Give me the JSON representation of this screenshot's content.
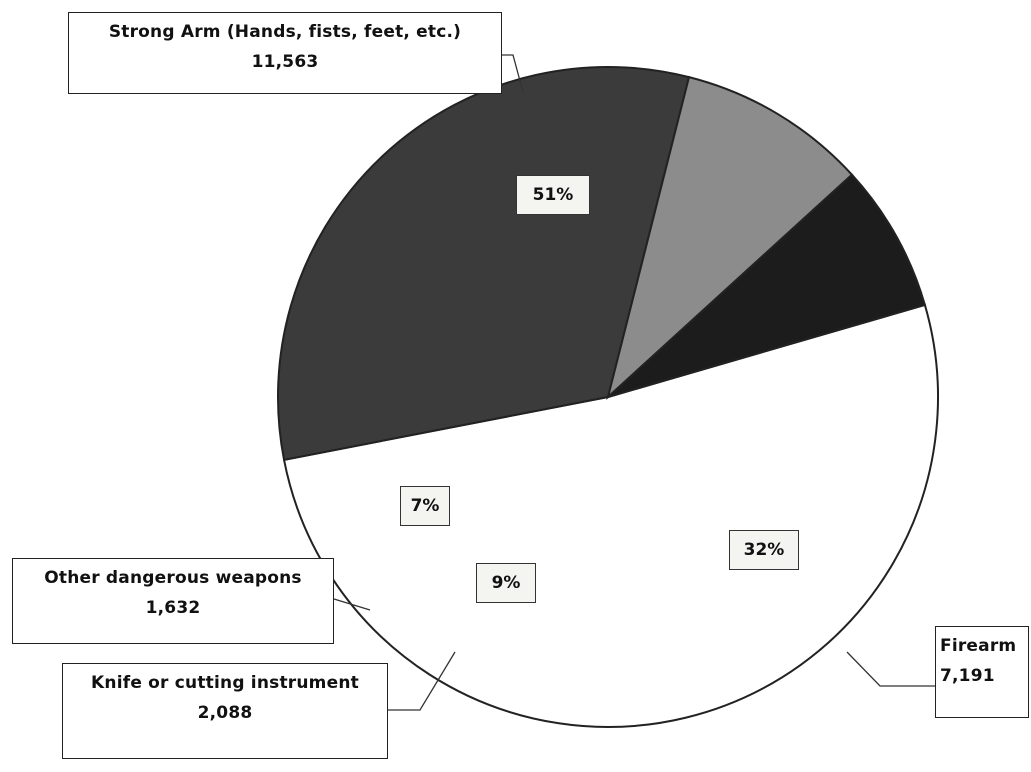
{
  "chart_data": {
    "type": "pie",
    "slices": [
      {
        "label": "Strong Arm (Hands, fists, feet, etc.)",
        "value": 11563,
        "value_text": "11,563",
        "percent_text": "51%",
        "color": "#ffffff"
      },
      {
        "label": "Firearm",
        "value": 7191,
        "value_text": "7,191",
        "percent_text": "32%",
        "color": "#3b3b3b"
      },
      {
        "label": "Knife or cutting instrument",
        "value": 2088,
        "value_text": "2,088",
        "percent_text": "9%",
        "color": "#8c8c8c"
      },
      {
        "label": "Other dangerous weapons",
        "value": 1632,
        "value_text": "1,632",
        "percent_text": "7%",
        "color": "#1c1c1c"
      }
    ],
    "start_angle_deg": 73.8,
    "direction": "clockwise",
    "legend": "callouts"
  }
}
